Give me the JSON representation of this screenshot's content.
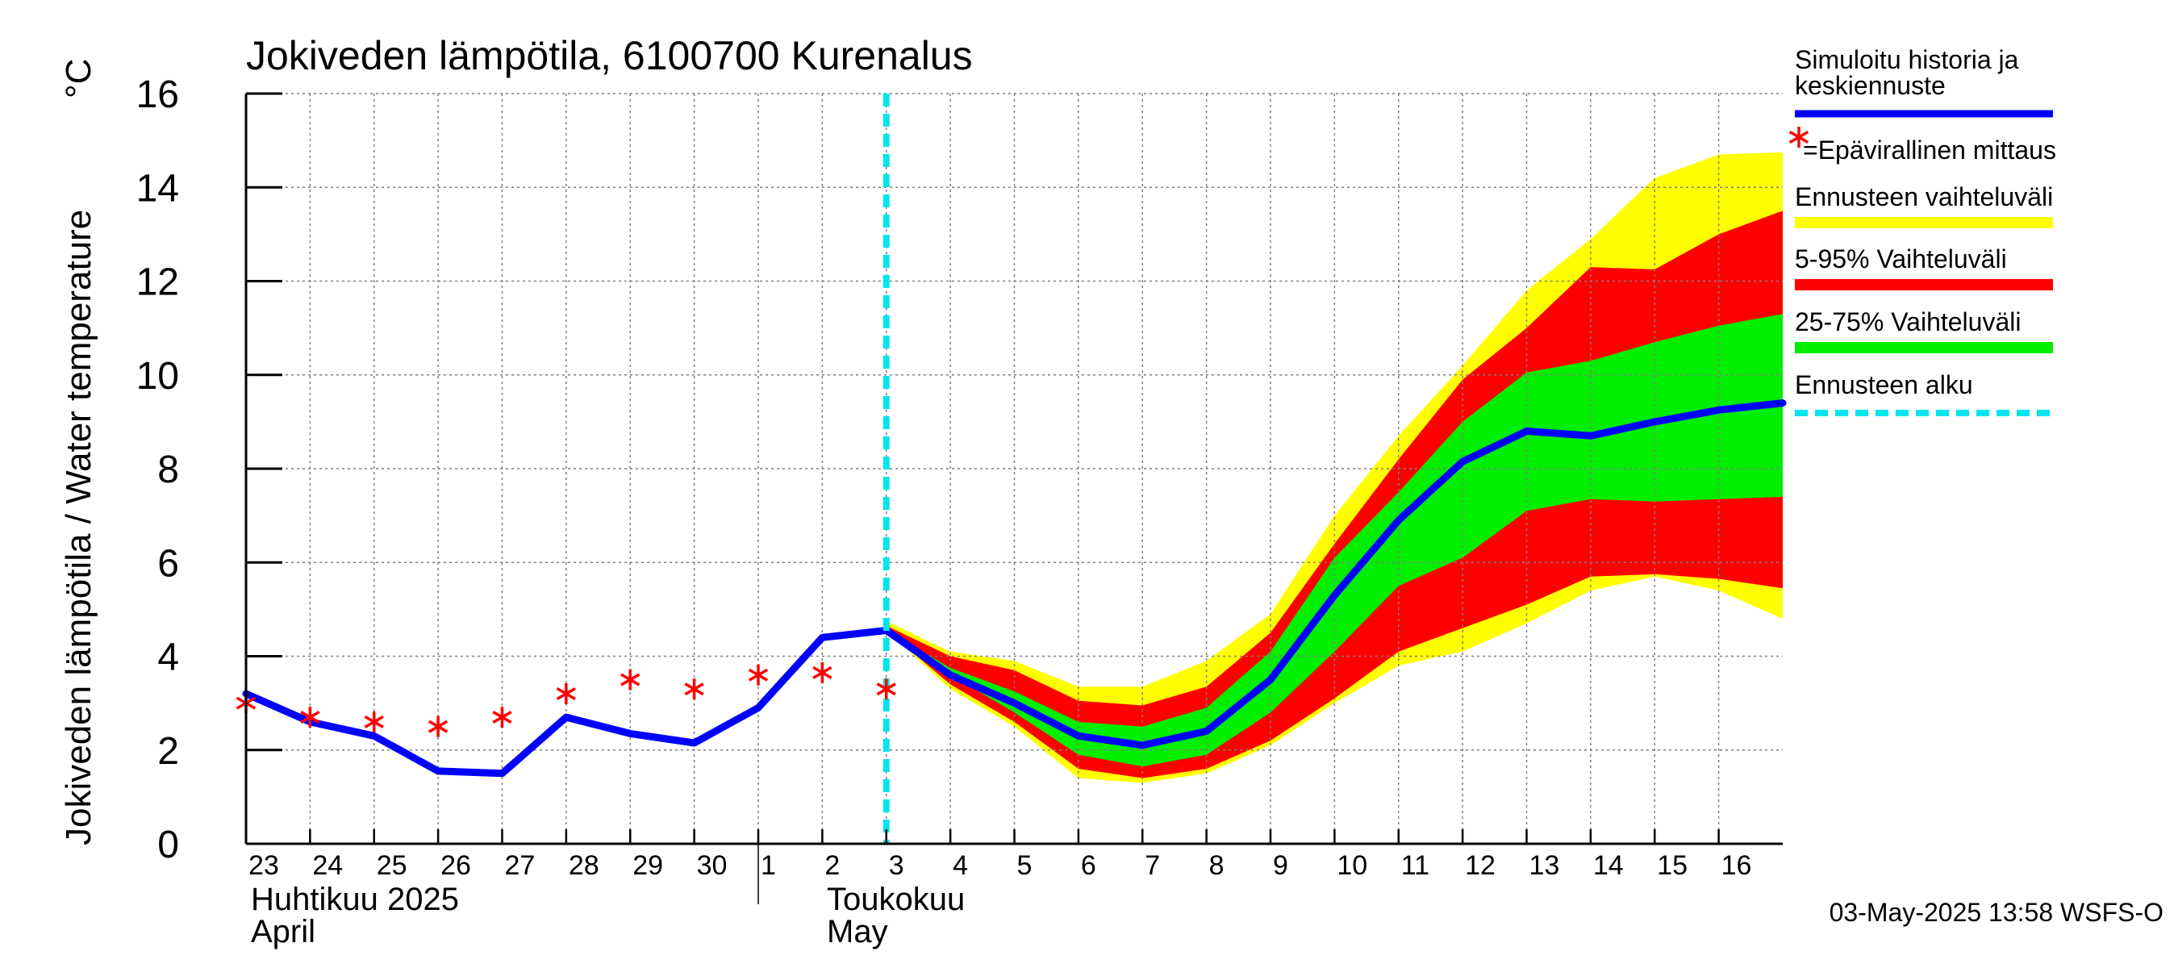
{
  "chart_data": {
    "type": "area",
    "title": "Jokiveden lämpötila, 6100700 Kurenalus",
    "ylabel": "Jokiveden lämpötila / Water temperature",
    "yunit": "°C",
    "ylim": [
      0,
      16
    ],
    "yticks": [
      0,
      2,
      4,
      6,
      8,
      10,
      12,
      14,
      16
    ],
    "xlim": [
      0,
      24
    ],
    "day_ticks": [
      {
        "x": 0,
        "label": "23"
      },
      {
        "x": 1,
        "label": "24"
      },
      {
        "x": 2,
        "label": "25"
      },
      {
        "x": 3,
        "label": "26"
      },
      {
        "x": 4,
        "label": "27"
      },
      {
        "x": 5,
        "label": "28"
      },
      {
        "x": 6,
        "label": "29"
      },
      {
        "x": 7,
        "label": "30"
      },
      {
        "x": 8,
        "label": "1"
      },
      {
        "x": 9,
        "label": "2"
      },
      {
        "x": 10,
        "label": "3"
      },
      {
        "x": 11,
        "label": "4"
      },
      {
        "x": 12,
        "label": "5"
      },
      {
        "x": 13,
        "label": "6"
      },
      {
        "x": 14,
        "label": "7"
      },
      {
        "x": 15,
        "label": "8"
      },
      {
        "x": 16,
        "label": "9"
      },
      {
        "x": 17,
        "label": "10"
      },
      {
        "x": 18,
        "label": "11"
      },
      {
        "x": 19,
        "label": "12"
      },
      {
        "x": 20,
        "label": "13"
      },
      {
        "x": 21,
        "label": "14"
      },
      {
        "x": 22,
        "label": "15"
      },
      {
        "x": 23,
        "label": "16"
      }
    ],
    "months": [
      {
        "x": 0,
        "fi": "Huhtikuu  2025",
        "en": "April"
      },
      {
        "x": 8,
        "fi": "Toukokuu",
        "en": "May"
      }
    ],
    "forecast_start_x": 10,
    "history_x": [
      0,
      1,
      2,
      3,
      4,
      5,
      6,
      7,
      8,
      9,
      10
    ],
    "history_y": [
      3.2,
      2.6,
      2.3,
      1.55,
      1.5,
      2.7,
      2.35,
      2.15,
      2.9,
      4.4,
      4.55
    ],
    "forecast_x": [
      10,
      11,
      12,
      13,
      14,
      15,
      16,
      17,
      18,
      19,
      20,
      21,
      22,
      23,
      24
    ],
    "median_y": [
      4.55,
      3.6,
      3.0,
      2.3,
      2.1,
      2.4,
      3.5,
      5.3,
      6.9,
      8.15,
      8.8,
      8.7,
      9.0,
      9.25,
      9.4
    ],
    "range_low": [
      4.55,
      3.3,
      2.5,
      1.4,
      1.3,
      1.5,
      2.1,
      3.0,
      3.8,
      4.1,
      4.7,
      5.4,
      5.7,
      5.4,
      4.8
    ],
    "range_high": [
      4.75,
      4.1,
      3.9,
      3.35,
      3.35,
      3.9,
      4.9,
      7.0,
      8.7,
      10.2,
      11.8,
      12.9,
      14.2,
      14.7,
      14.75
    ],
    "p05": [
      4.55,
      3.4,
      2.6,
      1.6,
      1.4,
      1.6,
      2.2,
      3.1,
      4.1,
      4.6,
      5.1,
      5.7,
      5.75,
      5.65,
      5.45
    ],
    "p95": [
      4.65,
      4.0,
      3.7,
      3.05,
      2.95,
      3.35,
      4.5,
      6.4,
      8.2,
      9.9,
      11.0,
      12.3,
      12.25,
      13.0,
      13.5
    ],
    "p25": [
      4.55,
      3.6,
      2.8,
      1.9,
      1.65,
      1.9,
      2.8,
      4.1,
      5.5,
      6.1,
      7.1,
      7.35,
      7.3,
      7.35,
      7.4
    ],
    "p75": [
      4.55,
      3.75,
      3.25,
      2.6,
      2.5,
      2.9,
      4.1,
      6.1,
      7.5,
      9.0,
      10.05,
      10.3,
      10.7,
      11.05,
      11.3
    ],
    "observations_x": [
      0,
      1,
      2,
      3,
      4,
      5,
      6,
      7,
      8,
      9,
      10
    ],
    "observations_y": [
      3.0,
      2.7,
      2.6,
      2.5,
      2.7,
      3.2,
      3.5,
      3.3,
      3.6,
      3.65,
      3.3
    ],
    "legend": [
      {
        "label": "Simuloitu historia ja",
        "label2": "keskiennuste",
        "color": "#0000ff",
        "style": "solid"
      },
      {
        "label": "=Epävirallinen mittaus",
        "color": "#ff0000",
        "style": "star"
      },
      {
        "label": "Ennusteen vaihteluväli",
        "color": "#ffff00",
        "style": "band"
      },
      {
        "label": "5-95% Vaihteluväli",
        "color": "#ff0000",
        "style": "band"
      },
      {
        "label": "25-75% Vaihteluväli",
        "color": "#00ee00",
        "style": "band"
      },
      {
        "label": "Ennusteen alku",
        "color": "#00e5ee",
        "style": "dashed"
      }
    ],
    "colors": {
      "median": "#0000ff",
      "range": "#ffff00",
      "p5_95": "#ff0000",
      "p25_75": "#00ee00",
      "observation": "#ff0000",
      "forecast_start": "#00e5ee",
      "grid": "#7f7f7f"
    }
  },
  "timestamp": "03-May-2025 13:58 WSFS-O"
}
